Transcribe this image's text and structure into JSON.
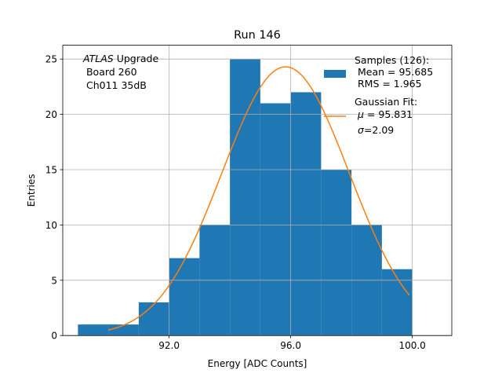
{
  "chart_data": {
    "type": "bar",
    "title": "Run 146",
    "xlabel": "Energy [ADC Counts]",
    "ylabel": "Entries",
    "xlim": [
      88.5,
      101.3
    ],
    "ylim": [
      0,
      26.25
    ],
    "grid": true,
    "x_ticks": [
      92.0,
      96.0,
      100.0
    ],
    "x_tick_labels": [
      "92.0",
      "96.0",
      "100.0"
    ],
    "y_ticks": [
      0,
      5,
      10,
      15,
      20,
      25
    ],
    "y_tick_labels": [
      "0",
      "5",
      "10",
      "15",
      "20",
      "25"
    ],
    "histogram": {
      "bin_edges": [
        89,
        90,
        91,
        92,
        93,
        94,
        95,
        96,
        97,
        98,
        99,
        100
      ],
      "counts": [
        1,
        1,
        3,
        7,
        10,
        25,
        21,
        22,
        15,
        10,
        6
      ],
      "color": "#1f77b4"
    },
    "gaussian_fit": {
      "mu": 95.831,
      "sigma": 2.09,
      "amplitude": 24.3,
      "x_range": [
        90.0,
        99.9
      ],
      "color": "#ff7f0e"
    },
    "legend": {
      "placement": "top-right",
      "samples_title": "Samples (126):",
      "samples_mean": " Mean = 95.685",
      "samples_rms": " RMS = 1.965",
      "fit_title": "Gaussian Fit:",
      "fit_mu_symbol": "μ",
      "fit_mu_value": " = 95.831",
      "fit_sigma_symbol": "σ",
      "fit_sigma_value": "=2.09"
    },
    "annotation": {
      "experiment": "ATLAS",
      "experiment_suffix": " Upgrade",
      "board": " Board 260",
      "channel": " Ch011 35dB"
    }
  },
  "colors": {
    "bar": "#1f77b4",
    "fit": "#ff7f0e",
    "grid": "#b0b0b0"
  }
}
